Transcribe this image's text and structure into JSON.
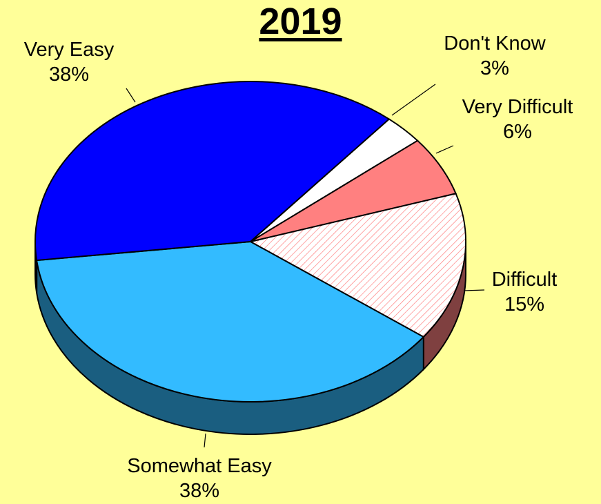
{
  "chart_data": {
    "type": "pie",
    "title": "2019",
    "slices": [
      {
        "name": "Very Easy",
        "value": 38,
        "pct_label": "38%",
        "color": "#0000ff",
        "side_color": "#00007f",
        "hatch": false
      },
      {
        "name": "Somewhat Easy",
        "value": 38,
        "pct_label": "38%",
        "color": "#33bbff",
        "side_color": "#1a5e80",
        "hatch": false
      },
      {
        "name": "Difficult",
        "value": 15,
        "pct_label": "15%",
        "color": "#ffffff",
        "side_color": "#7f4040",
        "hatch": true,
        "hatch_color": "#ff8080"
      },
      {
        "name": "Very Difficult",
        "value": 6,
        "pct_label": "6%",
        "color": "#ff8080",
        "side_color": "#7f4040",
        "hatch": false
      },
      {
        "name": "Don't Know",
        "value": 3,
        "pct_label": "3%",
        "color": "#ffffff",
        "side_color": "#7f7f7f",
        "hatch": false
      }
    ],
    "style": "3d-pie",
    "background": "#ffff99"
  }
}
